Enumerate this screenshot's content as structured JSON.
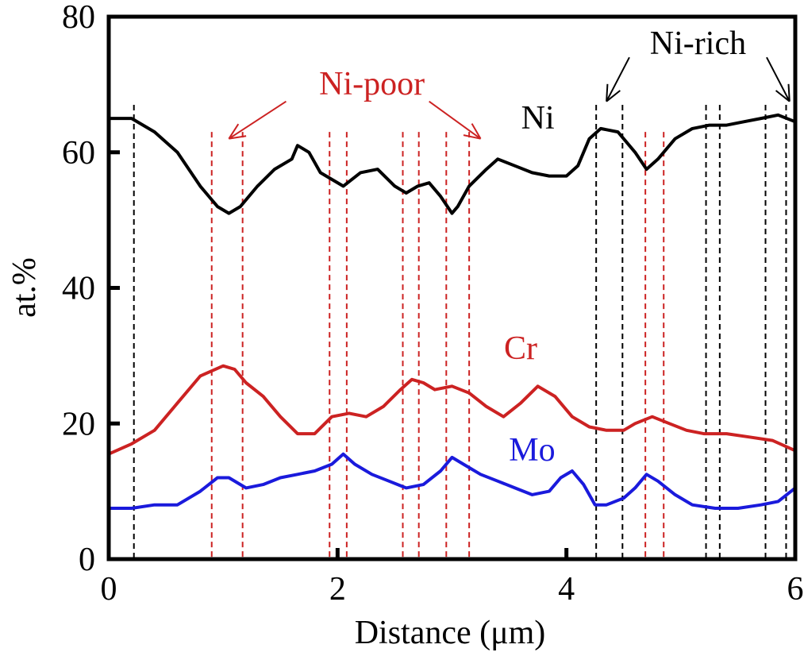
{
  "chart_data": {
    "type": "line",
    "xlabel": "Distance (μm)",
    "ylabel": "at.%",
    "xlim": [
      0,
      6
    ],
    "ylim": [
      0,
      80
    ],
    "x_ticks": [
      0,
      2,
      4,
      6
    ],
    "y_ticks": [
      0,
      20,
      40,
      60,
      80
    ],
    "grid": false,
    "series": [
      {
        "name": "Ni",
        "color": "#000000",
        "x": [
          0,
          0.2,
          0.4,
          0.6,
          0.8,
          0.95,
          1.05,
          1.15,
          1.3,
          1.45,
          1.6,
          1.65,
          1.75,
          1.85,
          1.95,
          2.05,
          2.2,
          2.35,
          2.5,
          2.6,
          2.7,
          2.8,
          2.9,
          3.0,
          3.05,
          3.15,
          3.3,
          3.4,
          3.55,
          3.7,
          3.85,
          4.0,
          4.1,
          4.2,
          4.3,
          4.45,
          4.6,
          4.7,
          4.8,
          4.95,
          5.1,
          5.25,
          5.4,
          5.55,
          5.7,
          5.85,
          6.0
        ],
        "values": [
          65,
          65,
          63,
          60,
          55,
          52,
          51,
          52,
          55,
          57.5,
          59,
          61,
          60,
          57,
          56,
          55,
          57,
          57.5,
          55,
          54,
          55,
          55.5,
          53.5,
          51,
          52,
          55,
          57.5,
          59,
          58,
          57,
          56.5,
          56.5,
          58,
          62,
          63.5,
          63,
          60,
          57.5,
          59,
          62,
          63.5,
          64,
          64,
          64.5,
          65,
          65.5,
          64.5
        ]
      },
      {
        "name": "Cr",
        "color": "#cc2222",
        "x": [
          0,
          0.2,
          0.4,
          0.6,
          0.8,
          1.0,
          1.1,
          1.2,
          1.35,
          1.5,
          1.65,
          1.8,
          1.95,
          2.1,
          2.25,
          2.4,
          2.55,
          2.65,
          2.75,
          2.85,
          3.0,
          3.15,
          3.3,
          3.45,
          3.6,
          3.75,
          3.9,
          4.05,
          4.2,
          4.35,
          4.5,
          4.6,
          4.75,
          4.9,
          5.05,
          5.2,
          5.4,
          5.6,
          5.8,
          6.0
        ],
        "values": [
          15.5,
          17,
          19,
          23,
          27,
          28.5,
          28,
          26,
          24,
          21,
          18.5,
          18.5,
          21,
          21.5,
          21,
          22.5,
          25,
          26.5,
          26,
          25,
          25.5,
          24.5,
          22.5,
          21,
          23,
          25.5,
          24,
          21,
          19.5,
          19,
          19,
          20,
          21,
          20,
          19,
          18.5,
          18.5,
          18,
          17.5,
          16
        ]
      },
      {
        "name": "Mo",
        "color": "#1a1adc",
        "x": [
          0,
          0.2,
          0.4,
          0.6,
          0.8,
          0.95,
          1.05,
          1.2,
          1.35,
          1.5,
          1.65,
          1.8,
          1.95,
          2.05,
          2.15,
          2.3,
          2.45,
          2.6,
          2.75,
          2.9,
          3.0,
          3.1,
          3.25,
          3.4,
          3.55,
          3.7,
          3.85,
          3.95,
          4.05,
          4.15,
          4.25,
          4.35,
          4.5,
          4.6,
          4.7,
          4.8,
          4.95,
          5.1,
          5.3,
          5.5,
          5.7,
          5.85,
          6.0
        ],
        "values": [
          7.5,
          7.5,
          8,
          8,
          10,
          12,
          12,
          10.5,
          11,
          12,
          12.5,
          13,
          14,
          15.5,
          14,
          12.5,
          11.5,
          10.5,
          11,
          13,
          15,
          14,
          12.5,
          11.5,
          10.5,
          9.5,
          10,
          12,
          13,
          11,
          8,
          8,
          9,
          10.5,
          12.5,
          11.5,
          9.5,
          8,
          7.5,
          7.5,
          8,
          8.5,
          10.5
        ]
      }
    ],
    "annotations": [
      {
        "label": "Ni",
        "x": 3.75,
        "y": 63.5,
        "color": "#000000"
      },
      {
        "label": "Cr",
        "x": 3.6,
        "y": 29.5,
        "color": "#cc2222"
      },
      {
        "label": "Mo",
        "x": 3.7,
        "y": 14.5,
        "color": "#1a1adc"
      },
      {
        "label": "Ni-poor",
        "x": 2.3,
        "y": 68.5,
        "color": "#cc2222"
      },
      {
        "label": "Ni-rich",
        "x": 5.15,
        "y": 74.5,
        "color": "#000000"
      }
    ],
    "arrows": [
      {
        "color": "#cc2222",
        "from": [
          1.55,
          67.5
        ],
        "to": [
          1.05,
          62
        ]
      },
      {
        "color": "#cc2222",
        "from": [
          2.8,
          67.5
        ],
        "to": [
          3.25,
          62
        ]
      },
      {
        "color": "#000000",
        "from": [
          4.55,
          74
        ],
        "to": [
          4.35,
          67.5
        ]
      },
      {
        "color": "#000000",
        "from": [
          5.75,
          74
        ],
        "to": [
          5.95,
          67.5
        ]
      }
    ],
    "reference_lines": [
      {
        "color": "#000000",
        "x": [
          0.22,
          4.26,
          4.49,
          5.22,
          5.34,
          5.74,
          5.92
        ],
        "y_top": 67
      },
      {
        "color": "#cc2222",
        "x": [
          0.9,
          1.17,
          1.93,
          2.08,
          2.57,
          2.71,
          2.95,
          3.15,
          4.69,
          4.85
        ],
        "y_top": 63
      }
    ]
  }
}
